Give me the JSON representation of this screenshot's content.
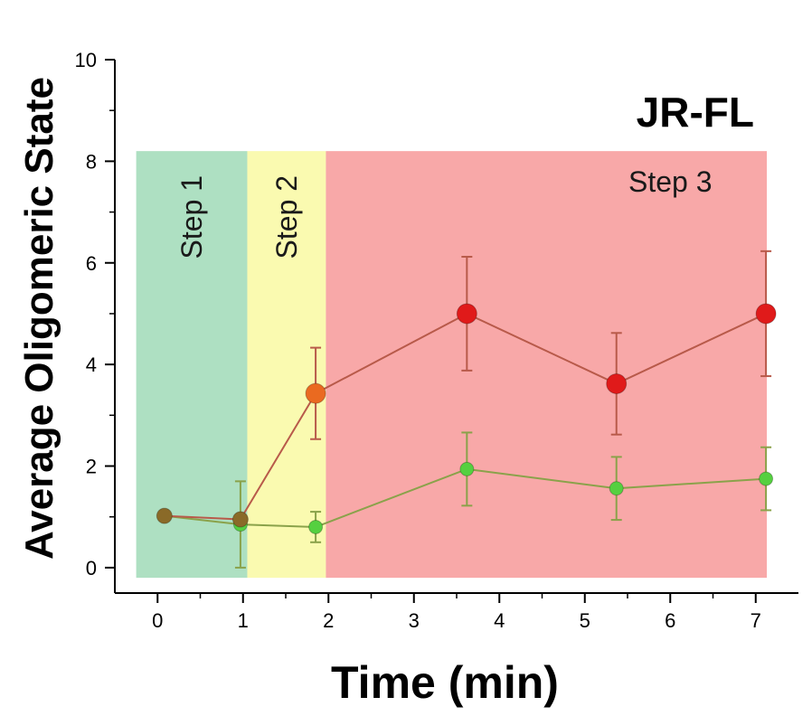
{
  "chart_data": {
    "type": "line",
    "title": "JR-FL",
    "xlabel": "Time (min)",
    "ylabel": "Average Oligomeric State",
    "xlim": [
      -0.5,
      7.5
    ],
    "ylim": [
      -0.5,
      10
    ],
    "xticks": [
      0,
      1,
      2,
      3,
      4,
      5,
      6,
      7
    ],
    "yticks": [
      0,
      2,
      4,
      6,
      8,
      10
    ],
    "grid": false,
    "steps": [
      {
        "label": "Step 1",
        "x_start": -0.25,
        "x_end": 1.05,
        "color": "#aee0c2",
        "label_rotated": true
      },
      {
        "label": "Step 2",
        "x_start": 1.05,
        "x_end": 1.97,
        "color": "#fafab0",
        "label_rotated": true
      },
      {
        "label": "Step 3",
        "x_start": 1.97,
        "x_end": 7.13,
        "color": "#f8a8a8",
        "label_rotated": false
      }
    ],
    "series": [
      {
        "color": "#e01a1a",
        "line_color": "#b85a4a",
        "marker_size": "large",
        "x": [
          0.08,
          0.97,
          1.85,
          3.62,
          5.37,
          7.12
        ],
        "y": [
          1.02,
          0.95,
          3.43,
          5.0,
          3.62,
          5.0
        ],
        "err": [
          0.08,
          0.08,
          0.9,
          1.12,
          1.0,
          1.23
        ]
      },
      {
        "color": "#55d040",
        "line_color": "#8aa24a",
        "marker_size": "small",
        "x": [
          0.08,
          0.97,
          1.85,
          3.62,
          5.37,
          7.12
        ],
        "y": [
          1.02,
          0.85,
          0.8,
          1.94,
          1.56,
          1.75
        ],
        "err": [
          0.08,
          0.85,
          0.3,
          0.72,
          0.62,
          0.62
        ]
      }
    ]
  }
}
